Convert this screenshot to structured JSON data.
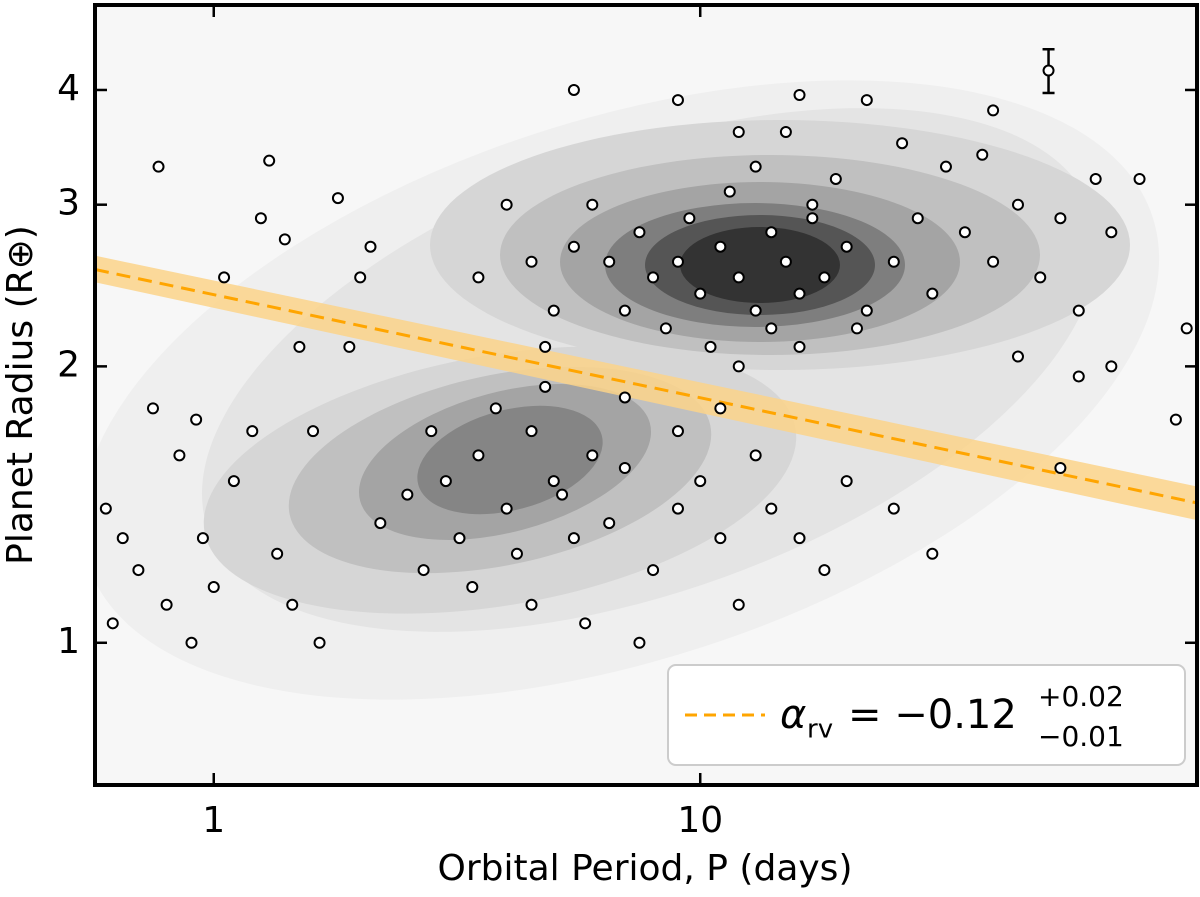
{
  "chart_data": {
    "type": "scatter",
    "xlabel": "Orbital Period, P (days)",
    "ylabel": "Planet Radius (R⊕)",
    "xscale": "log",
    "yscale": "log",
    "xlim": [
      0.57,
      105
    ],
    "ylim": [
      0.7,
      4.95
    ],
    "xticks": [
      1,
      10
    ],
    "yticks": [
      1,
      2,
      3,
      4
    ],
    "grid": false,
    "marker_color": "#ffffff",
    "marker_edge": "#000000",
    "x": [
      8,
      9,
      10,
      11,
      12,
      13,
      14,
      15,
      16,
      17,
      18,
      20,
      22,
      9.5,
      11.5,
      13,
      15,
      17,
      19,
      21,
      7,
      7.5,
      6.5,
      6,
      8.5,
      10.5,
      12,
      14,
      16,
      25,
      28,
      30,
      32,
      35,
      40,
      45,
      50,
      55,
      60,
      65,
      70,
      80,
      40,
      38,
      22,
      16,
      5.5,
      9,
      12,
      26,
      4.5,
      5,
      5.5,
      4,
      3.5,
      4.8,
      70,
      60,
      45,
      55,
      100,
      95,
      3,
      3.5,
      4,
      4.5,
      5,
      5.5,
      6,
      3.2,
      3.8,
      4.2,
      4.8,
      5.2,
      6.5,
      7,
      2.8,
      2.5,
      2.2,
      2.7,
      3.4,
      4.5,
      5.8,
      7.5,
      8,
      9,
      10,
      11,
      12,
      13,
      14,
      16,
      18,
      20,
      25,
      30,
      9,
      11,
      7,
      0.6,
      0.65,
      0.7,
      0.75,
      0.8,
      0.85,
      0.9,
      0.92,
      0.95,
      1.0,
      1.1,
      1.2,
      1.25,
      1.3,
      1.35,
      1.5,
      1.6,
      1.65,
      1.8,
      1.9,
      2.0,
      2.1,
      0.77,
      1.4,
      1.45,
      0.62,
      1.05
    ],
    "y": [
      2.5,
      2.6,
      2.4,
      2.7,
      2.5,
      2.3,
      2.8,
      2.6,
      2.4,
      2.9,
      2.5,
      2.7,
      2.3,
      2.9,
      3.1,
      3.3,
      3.6,
      3.0,
      3.2,
      2.2,
      2.3,
      2.8,
      2.6,
      3.0,
      2.2,
      2.1,
      2.0,
      2.2,
      2.1,
      2.6,
      2.9,
      2.4,
      3.3,
      2.8,
      2.6,
      3.0,
      2.5,
      2.9,
      2.3,
      3.2,
      2.8,
      3.2,
      3.8,
      3.4,
      3.9,
      3.95,
      4.0,
      3.9,
      3.6,
      3.5,
      2.6,
      2.3,
      2.7,
      3.0,
      2.5,
      2.1,
      2.0,
      1.95,
      2.05,
      1.55,
      2.2,
      1.75,
      1.5,
      1.6,
      1.4,
      1.7,
      1.5,
      1.3,
      1.6,
      1.3,
      1.8,
      1.25,
      1.9,
      1.45,
      1.35,
      1.55,
      1.7,
      1.45,
      1.35,
      1.2,
      1.15,
      1.1,
      1.05,
      1.0,
      1.2,
      1.4,
      1.5,
      1.3,
      1.1,
      1.6,
      1.4,
      1.3,
      1.2,
      1.5,
      1.4,
      1.25,
      1.7,
      1.8,
      1.85,
      1.4,
      1.3,
      1.2,
      1.8,
      1.1,
      1.6,
      1.0,
      1.75,
      1.3,
      1.15,
      1.5,
      1.7,
      2.9,
      3.35,
      1.25,
      2.1,
      1.7,
      1.0,
      3.05,
      2.1,
      2.5,
      2.7,
      3.3,
      2.75,
      1.1,
      1.05,
      2.5
    ],
    "fit": {
      "color": "#ffa500",
      "band_color": "#fcd38a",
      "x": [
        0.57,
        105
      ],
      "y": [
        2.55,
        1.42
      ],
      "upper": [
        2.64,
        1.48
      ],
      "lower": [
        2.47,
        1.36
      ]
    },
    "error_bar": {
      "x": 52,
      "y": 4.2,
      "err": 0.23
    },
    "legend": {
      "position": "lower right",
      "symbol": "α",
      "subscript": "rv",
      "value": "= −0.12",
      "upper": "+0.02",
      "lower": "−0.01"
    }
  }
}
